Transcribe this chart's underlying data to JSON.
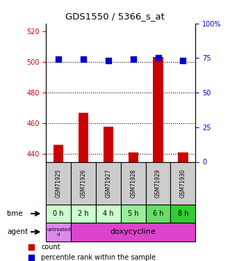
{
  "title": "GDS1550 / 5366_s_at",
  "samples": [
    "GSM71925",
    "GSM71926",
    "GSM71927",
    "GSM71928",
    "GSM71929",
    "GSM71930"
  ],
  "counts": [
    446,
    467,
    458,
    441,
    503,
    441
  ],
  "percentile_ranks": [
    74,
    74,
    73,
    74,
    75,
    73
  ],
  "ylim_left": [
    435,
    525
  ],
  "ylim_right": [
    0,
    100
  ],
  "yticks_left": [
    440,
    460,
    480,
    500,
    520
  ],
  "yticks_right": [
    0,
    25,
    50,
    75,
    100
  ],
  "time_labels": [
    "0 h",
    "2 h",
    "4 h",
    "5 h",
    "6 h",
    "8 h"
  ],
  "time_bg_colors": [
    "#ccffcc",
    "#ccffcc",
    "#ccffcc",
    "#99ee99",
    "#66dd66",
    "#33cc33"
  ],
  "bar_color": "#cc0000",
  "dot_color": "#0000cc",
  "sample_bg_color": "#cccccc",
  "bar_width": 0.4,
  "dot_size": 35,
  "left_axis_color": "#cc0000",
  "right_axis_color": "#0000cc",
  "agent_untreated_color": "#dd88ee",
  "agent_doxy_color": "#dd44cc",
  "untreated_label": "untreated\nd",
  "doxy_label": "doxycycline"
}
